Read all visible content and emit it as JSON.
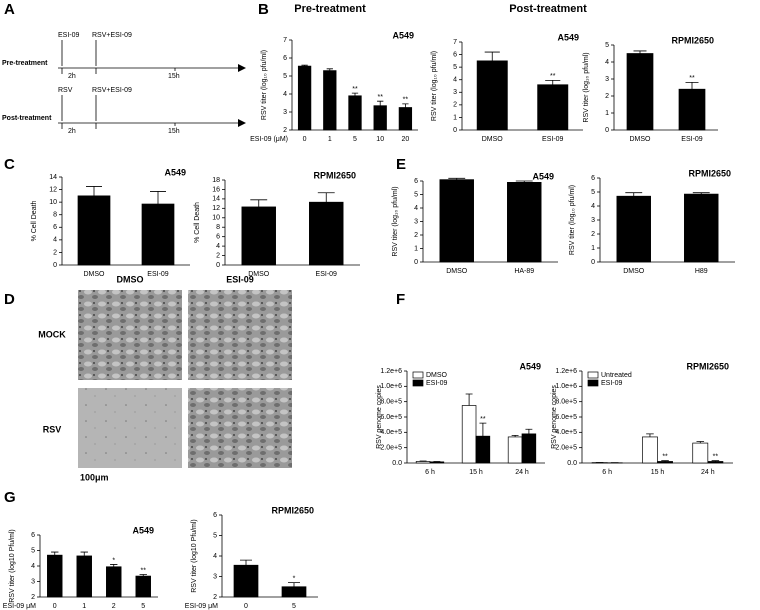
{
  "panel_labels": [
    "A",
    "B",
    "C",
    "D",
    "E",
    "F",
    "G"
  ],
  "column_headers": [
    "Pre-treatment",
    "Post-treatment"
  ],
  "timeline": {
    "pre": {
      "label": "Pre-treatment",
      "first": "ESI-09",
      "second": "RSV+ESI-09",
      "t1": "2h",
      "t2": "15h"
    },
    "post": {
      "label": "Post-treatment",
      "first": "RSV",
      "second": "RSV+ESI-09",
      "t1": "2h",
      "t2": "15h"
    }
  },
  "micrographs": {
    "columns": [
      "DMSO",
      "ESI-09"
    ],
    "rows": [
      "MOCK",
      "RSV"
    ],
    "scale": "100μm"
  },
  "chart_data": [
    {
      "type": "bar",
      "title": "A549",
      "ylabel": "RSV titer (log₁₀ pfu/ml)",
      "xlabel": "ESI-09 (μM)",
      "categories": [
        "0",
        "1",
        "5",
        "10",
        "20"
      ],
      "ylim": [
        2,
        7
      ],
      "yticks": [
        2,
        3,
        4,
        5,
        6,
        7
      ],
      "series": [
        {
          "color": "#000000",
          "values": [
            5.55,
            5.3,
            3.9,
            3.35,
            3.25
          ],
          "errors": [
            0.05,
            0.1,
            0.15,
            0.25,
            0.2
          ],
          "annotations": [
            null,
            null,
            "**",
            "**",
            "**"
          ]
        }
      ]
    },
    {
      "type": "bar",
      "title": "A549",
      "ylabel": "RSV titer (log₁₀ pfu/ml)",
      "categories": [
        "DMSO",
        "ESI-09"
      ],
      "ylim": [
        0,
        7
      ],
      "yticks": [
        0,
        1,
        2,
        3,
        4,
        5,
        6,
        7
      ],
      "series": [
        {
          "color": "#000000",
          "values": [
            5.5,
            3.6
          ],
          "errors": [
            0.7,
            0.35
          ],
          "annotations": [
            null,
            "**"
          ]
        }
      ]
    },
    {
      "type": "bar",
      "title": "RPMI2650",
      "ylabel": "RSV titer (log₁₀ pfu/ml)",
      "categories": [
        "DMSO",
        "ESI-09"
      ],
      "ylim": [
        0,
        5
      ],
      "yticks": [
        0,
        1,
        2,
        3,
        4,
        5
      ],
      "series": [
        {
          "color": "#000000",
          "values": [
            4.5,
            2.4
          ],
          "errors": [
            0.15,
            0.4
          ],
          "annotations": [
            null,
            "**"
          ]
        }
      ]
    },
    {
      "type": "bar",
      "title": "A549",
      "ylabel": "% Cell Death",
      "categories": [
        "DMSO",
        "ESI-09"
      ],
      "ylim": [
        0,
        14
      ],
      "yticks": [
        0,
        2,
        4,
        6,
        8,
        10,
        12,
        14
      ],
      "series": [
        {
          "color": "#000000",
          "values": [
            11,
            9.7
          ],
          "errors": [
            1.5,
            2
          ],
          "annotations": [
            null,
            null
          ]
        }
      ]
    },
    {
      "type": "bar",
      "title": "RPMI2650",
      "ylabel": "% Cell Death",
      "categories": [
        "DMSO",
        "ESI-09"
      ],
      "ylim": [
        0,
        18
      ],
      "yticks": [
        0,
        2,
        4,
        6,
        8,
        10,
        12,
        14,
        16,
        18
      ],
      "series": [
        {
          "color": "#000000",
          "values": [
            12.3,
            13.3
          ],
          "errors": [
            1.5,
            2
          ],
          "annotations": [
            null,
            null
          ]
        }
      ]
    },
    {
      "type": "bar",
      "title": "A549",
      "ylabel": "RSV titer (log₁₀ pfu/ml)",
      "categories": [
        "DMSO",
        "HA-89"
      ],
      "ylim": [
        0,
        6
      ],
      "yticks": [
        0,
        1,
        2,
        3,
        4,
        5,
        6
      ],
      "series": [
        {
          "color": "#000000",
          "values": [
            6.1,
            5.9
          ],
          "errors": [
            0.1,
            0.1
          ],
          "annotations": [
            null,
            null
          ]
        }
      ]
    },
    {
      "type": "bar",
      "title": "RPMI2650",
      "ylabel": "RSV titer (log₁₀ pfu/ml)",
      "categories": [
        "DMSO",
        "H89"
      ],
      "ylim": [
        0,
        6
      ],
      "yticks": [
        0,
        1,
        2,
        3,
        4,
        5,
        6
      ],
      "series": [
        {
          "color": "#000000",
          "values": [
            4.7,
            4.85
          ],
          "errors": [
            0.25,
            0.1
          ],
          "annotations": [
            null,
            null
          ]
        }
      ]
    },
    {
      "type": "bar",
      "title": "A549",
      "ylabel": "RSV genome copies",
      "categories": [
        "6 h",
        "15 h",
        "24 h"
      ],
      "ylim": [
        0,
        1200000
      ],
      "legend": "upper left",
      "yticks": [
        {
          "value": 0,
          "label": "0.0"
        },
        {
          "value": 200000,
          "label": "2.0e+5"
        },
        {
          "value": 400000,
          "label": "4.0e+5"
        },
        {
          "value": 600000,
          "label": "6.0e+5"
        },
        {
          "value": 800000,
          "label": "8.0e+5"
        },
        {
          "value": 1000000,
          "label": "1.0e+6"
        },
        {
          "value": 1200000,
          "label": "1.2e+6"
        }
      ],
      "series": [
        {
          "name": "DMSO",
          "color": "#ffffff",
          "values": [
            20000,
            750000,
            340000
          ],
          "errors": [
            5000,
            150000,
            20000
          ],
          "annotations": [
            null,
            null,
            null
          ]
        },
        {
          "name": "ESI-09",
          "color": "#000000",
          "values": [
            15000,
            350000,
            380000
          ],
          "errors": [
            5000,
            170000,
            60000
          ],
          "annotations": [
            null,
            "**",
            null
          ]
        }
      ]
    },
    {
      "type": "bar",
      "title": "RPMI2650",
      "ylabel": "RSV genome copies",
      "categories": [
        "6 h",
        "15 h",
        "24 h"
      ],
      "ylim": [
        0,
        1200000
      ],
      "legend": "upper left",
      "yticks": [
        {
          "value": 0,
          "label": "0.0"
        },
        {
          "value": 200000,
          "label": "2.0e+5"
        },
        {
          "value": 400000,
          "label": "4.0e+5"
        },
        {
          "value": 600000,
          "label": "6.0e+5"
        },
        {
          "value": 800000,
          "label": "8.0e+5"
        },
        {
          "value": 1000000,
          "label": "1.0e+6"
        },
        {
          "value": 1200000,
          "label": "1.2e+6"
        }
      ],
      "series": [
        {
          "name": "Untreated",
          "color": "#ffffff",
          "values": [
            5000,
            340000,
            260000
          ],
          "errors": [
            2000,
            40000,
            20000
          ],
          "annotations": [
            null,
            null,
            null
          ]
        },
        {
          "name": "ESI-09",
          "color": "#000000",
          "values": [
            3000,
            20000,
            20000
          ],
          "errors": [
            2000,
            10000,
            10000
          ],
          "annotations": [
            null,
            "**",
            "**"
          ]
        }
      ]
    },
    {
      "type": "bar",
      "title": "A549",
      "ylabel": "RSV titer (log10 Pfu/ml)",
      "xlabel": "ESI-09 μM",
      "categories": [
        "0",
        "1",
        "2",
        "5"
      ],
      "ylim": [
        2,
        6
      ],
      "yticks": [
        2,
        3,
        4,
        5,
        6
      ],
      "series": [
        {
          "color": "#000000",
          "values": [
            4.7,
            4.65,
            3.95,
            3.35
          ],
          "errors": [
            0.2,
            0.25,
            0.15,
            0.1
          ],
          "annotations": [
            null,
            null,
            "*",
            "**"
          ]
        }
      ]
    },
    {
      "type": "bar",
      "title": "RPMI2650",
      "ylabel": "RSV titer (log10 Pfu/ml)",
      "xlabel": "ESI-09 μM",
      "categories": [
        "0",
        "5"
      ],
      "ylim": [
        2,
        6
      ],
      "yticks": [
        2,
        3,
        4,
        5,
        6
      ],
      "series": [
        {
          "color": "#000000",
          "values": [
            3.55,
            2.5
          ],
          "errors": [
            0.25,
            0.2
          ],
          "annotations": [
            null,
            "*"
          ]
        }
      ]
    }
  ]
}
